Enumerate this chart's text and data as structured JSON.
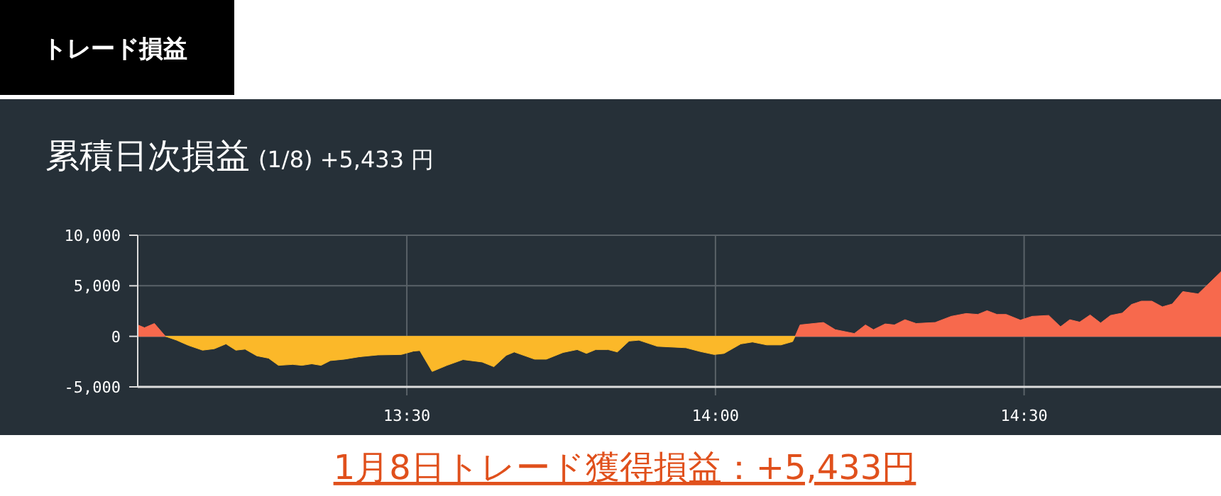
{
  "chart_data": {
    "type": "area",
    "title": "累積日次損益",
    "subtitle": "(1/8) +5,433 円",
    "annotations": [
      "トレード損益",
      "1月8日トレード獲得損益：+5,433円"
    ],
    "x": [
      13.064,
      13.075,
      13.091,
      13.109,
      13.127,
      13.146,
      13.169,
      13.188,
      13.207,
      13.223,
      13.238,
      13.257,
      13.276,
      13.292,
      13.315,
      13.33,
      13.346,
      13.361,
      13.376,
      13.399,
      13.422,
      13.453,
      13.491,
      13.511,
      13.521,
      13.541,
      13.565,
      13.591,
      13.622,
      13.641,
      13.661,
      13.674,
      13.707,
      13.726,
      13.753,
      13.776,
      13.791,
      13.806,
      13.826,
      13.841,
      13.86,
      13.876,
      13.906,
      13.952,
      13.975,
      13.998,
      14.014,
      14.041,
      14.06,
      14.083,
      14.106,
      14.125,
      14.129,
      14.137,
      14.175,
      14.194,
      14.225,
      14.243,
      14.256,
      14.275,
      14.29,
      14.307,
      14.325,
      14.356,
      14.382,
      14.406,
      14.425,
      14.44,
      14.456,
      14.471,
      14.494,
      14.513,
      14.54,
      14.559,
      14.574,
      14.59,
      14.607,
      14.624,
      14.64,
      14.659,
      14.674,
      14.69,
      14.707,
      14.724,
      14.74,
      14.757,
      14.782,
      14.819
    ],
    "series": [
      {
        "color": "#f7694d",
        "values": [
          1130,
          850,
          1270,
          0,
          null,
          null,
          null,
          null,
          null,
          null,
          null,
          null,
          null,
          null,
          null,
          null,
          null,
          null,
          null,
          null,
          null,
          null,
          null,
          null,
          null,
          null,
          null,
          null,
          null,
          null,
          null,
          null,
          null,
          null,
          null,
          null,
          null,
          null,
          null,
          null,
          null,
          null,
          null,
          null,
          null,
          null,
          null,
          null,
          null,
          null,
          null,
          null,
          0,
          1130,
          1370,
          660,
          280,
          1130,
          660,
          1230,
          1130,
          1650,
          1270,
          1370,
          1980,
          2260,
          2170,
          2540,
          2170,
          2170,
          1600,
          1980,
          2070,
          950,
          1650,
          1410,
          2120,
          1320,
          2070,
          2300,
          3150,
          3480,
          3480,
          2920,
          3200,
          4430,
          4200,
          6390
        ]
      },
      {
        "color": "#fbb829",
        "values": [
          null,
          null,
          null,
          0,
          -380,
          -890,
          -1370,
          -1230,
          -750,
          -1370,
          -1270,
          -1930,
          -2160,
          -2870,
          -2780,
          -2870,
          -2720,
          -2870,
          -2400,
          -2260,
          -2030,
          -1840,
          -1800,
          -1460,
          -1410,
          -3480,
          -2870,
          -2300,
          -2540,
          -3010,
          -1880,
          -1550,
          -2260,
          -2260,
          -1600,
          -1310,
          -1690,
          -1310,
          -1310,
          -1550,
          -470,
          -380,
          -990,
          -1130,
          -1500,
          -1800,
          -1690,
          -750,
          -560,
          -850,
          -850,
          -520,
          0,
          null,
          null,
          null,
          null,
          null,
          null,
          null,
          null,
          null,
          null,
          null,
          null,
          null,
          null,
          null,
          null,
          null,
          null,
          null,
          null,
          null,
          null,
          null,
          null,
          null,
          null,
          null,
          null,
          null,
          null,
          null,
          null,
          null,
          null,
          null
        ]
      }
    ],
    "xlim": [
      13.064,
      14.819
    ],
    "ylim": [
      -5000,
      10000
    ],
    "xticks": [
      {
        "value": 13.5,
        "label": "13:30"
      },
      {
        "value": 14,
        "label": "14:00"
      },
      {
        "value": 14.5,
        "label": "14:30"
      }
    ],
    "yticks": [
      {
        "value": -5000,
        "label": "-5,000"
      },
      {
        "value": 0,
        "label": "0"
      },
      {
        "value": 5000,
        "label": "5,000"
      },
      {
        "value": 10000,
        "label": "10,000"
      }
    ],
    "grid": true
  }
}
